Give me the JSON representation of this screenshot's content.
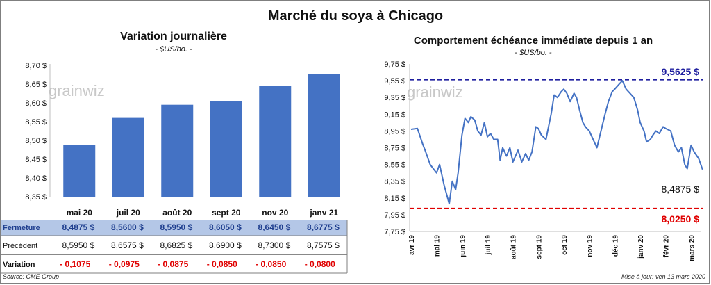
{
  "title": "Marché du soya à Chicago",
  "watermark": "grainwiz",
  "left": {
    "title": "Variation journalière",
    "subtitle": "- $US/bo. -",
    "y_ticks": [
      "8,70 $",
      "8,65 $",
      "8,60 $",
      "8,55 $",
      "8,50 $",
      "8,45 $",
      "8,40 $",
      "8,35 $"
    ],
    "table": {
      "fermeture_label": "Fermeture",
      "precedent_label": "Précédent",
      "variation_label": "Variation",
      "fermeture": [
        "8,4875",
        "8,5600",
        "8,5950",
        "8,6050",
        "8,6450",
        "8,6775"
      ],
      "precedent": [
        "8,5950",
        "8,6575",
        "8,6825",
        "8,6900",
        "8,7300",
        "8,7575"
      ],
      "variation": [
        "- 0,1075",
        "- 0,0975",
        "- 0,0875",
        "- 0,0850",
        "- 0,0850",
        "- 0,0800"
      ],
      "currency": "$"
    },
    "colors": {
      "bar": "#4472c4",
      "row_fill": "#b4c7e7",
      "neg": "#e00000"
    }
  },
  "right": {
    "title": "Comportement  échéance immédiate depuis 1 an",
    "subtitle": "- $US/bo. -",
    "y_ticks": [
      "9,75 $",
      "9,55 $",
      "9,35 $",
      "9,15 $",
      "8,95 $",
      "8,75 $",
      "8,55 $",
      "8,35 $",
      "8,15 $",
      "7,95 $",
      "7,75 $"
    ],
    "x_ticks": [
      "avr 19",
      "mai 19",
      "juin 19",
      "juil 19",
      "août 19",
      "sept 19",
      "oct 19",
      "nov 19",
      "déc 19",
      "janv 20",
      "févr 20",
      "mars 20"
    ],
    "high_label": "9,5625 $",
    "low_label": "8,0250 $",
    "last_label": "8,4875 $",
    "colors": {
      "line": "#4472c4",
      "high": "#1f1f9f",
      "low": "#e00000"
    }
  },
  "chart_data": [
    {
      "type": "bar",
      "title": "Variation journalière",
      "subtitle": "- $US/bo. -",
      "categories": [
        "mai 20",
        "juil 20",
        "août 20",
        "sept 20",
        "nov 20",
        "janv 21"
      ],
      "values": [
        8.4875,
        8.56,
        8.595,
        8.605,
        8.645,
        8.6775
      ],
      "ylim": [
        8.35,
        8.7
      ],
      "grid": false
    },
    {
      "type": "line",
      "title": "Comportement  échéance immédiate depuis 1 an",
      "subtitle": "- $US/bo. -",
      "ylim": [
        7.75,
        9.75
      ],
      "grid": false,
      "reference_lines": [
        8.025,
        9.5625
      ],
      "x": [
        0,
        0.25,
        0.45,
        0.55,
        0.75,
        1,
        1.12,
        1.3,
        1.5,
        1.62,
        1.75,
        1.85,
        2,
        2.12,
        2.25,
        2.35,
        2.5,
        2.62,
        2.75,
        2.88,
        3,
        3.12,
        3.25,
        3.4,
        3.5,
        3.6,
        3.75,
        3.88,
        4,
        4.2,
        4.35,
        4.5,
        4.62,
        4.75,
        4.9,
        5,
        5.12,
        5.3,
        5.5,
        5.62,
        5.75,
        5.9,
        6,
        6.12,
        6.25,
        6.4,
        6.5,
        6.62,
        6.75,
        6.85,
        7,
        7.15,
        7.3,
        7.5,
        7.62,
        7.75,
        7.9,
        8,
        8.15,
        8.3,
        8.45,
        8.6,
        8.75,
        8.9,
        9,
        9.15,
        9.25,
        9.4,
        9.5,
        9.62,
        9.75,
        9.9,
        10,
        10.2,
        10.35,
        10.5,
        10.62,
        10.75,
        10.85,
        11,
        11.12,
        11.3,
        11.45
      ],
      "y": [
        8.97,
        8.98,
        8.8,
        8.72,
        8.55,
        8.45,
        8.55,
        8.3,
        8.08,
        8.35,
        8.25,
        8.45,
        8.9,
        9.1,
        9.05,
        9.12,
        9.08,
        8.95,
        8.9,
        9.05,
        8.88,
        8.92,
        8.85,
        8.85,
        8.6,
        8.75,
        8.65,
        8.75,
        8.58,
        8.72,
        8.58,
        8.68,
        8.6,
        8.7,
        9.0,
        8.98,
        8.9,
        8.85,
        9.15,
        9.38,
        9.35,
        9.42,
        9.45,
        9.4,
        9.3,
        9.4,
        9.35,
        9.2,
        9.05,
        9.0,
        8.95,
        8.85,
        8.75,
        9.0,
        9.15,
        9.3,
        9.42,
        9.45,
        9.5,
        9.55,
        9.45,
        9.4,
        9.35,
        9.2,
        9.05,
        8.95,
        8.82,
        8.85,
        8.9,
        8.95,
        8.92,
        9.0,
        8.98,
        8.95,
        8.78,
        8.7,
        8.75,
        8.55,
        8.5,
        8.78,
        8.7,
        8.62,
        8.49
      ]
    }
  ]
}
